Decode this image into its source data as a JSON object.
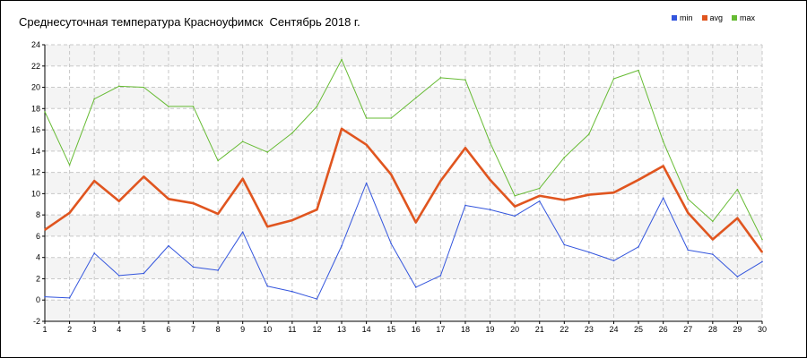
{
  "chart_data": {
    "type": "line",
    "title": "Среднесуточная температура Красноуфимск  Сентябрь 2018 г.",
    "xlabel": "",
    "ylabel": "",
    "x": [
      1,
      2,
      3,
      4,
      5,
      6,
      7,
      8,
      9,
      10,
      11,
      12,
      13,
      14,
      15,
      16,
      17,
      18,
      19,
      20,
      21,
      22,
      23,
      24,
      25,
      26,
      27,
      28,
      29,
      30
    ],
    "ylim": [
      -2,
      24
    ],
    "yticks": [
      -2,
      0,
      2,
      4,
      6,
      8,
      10,
      12,
      14,
      16,
      18,
      20,
      22,
      24
    ],
    "grid": true,
    "legend_position": "top-right",
    "series": [
      {
        "name": "min",
        "color": "#3355dd",
        "values": [
          0.3,
          0.2,
          4.4,
          2.3,
          2.5,
          5.1,
          3.1,
          2.8,
          6.4,
          1.3,
          0.8,
          0.1,
          5.1,
          11.0,
          5.3,
          1.2,
          2.3,
          8.9,
          8.5,
          7.9,
          9.3,
          5.2,
          4.5,
          3.7,
          5.0,
          9.6,
          4.7,
          4.3,
          2.2,
          3.6
        ]
      },
      {
        "name": "avg",
        "color": "#e0551f",
        "values": [
          6.6,
          8.2,
          11.2,
          9.3,
          11.6,
          9.5,
          9.1,
          8.1,
          11.4,
          6.9,
          7.5,
          8.5,
          16.1,
          14.6,
          11.8,
          7.3,
          11.2,
          14.3,
          11.3,
          8.8,
          9.8,
          9.4,
          9.9,
          10.1,
          11.3,
          12.6,
          8.2,
          5.7,
          7.7,
          4.5
        ]
      },
      {
        "name": "max",
        "color": "#66bb33",
        "values": [
          17.7,
          12.7,
          18.9,
          20.1,
          20.0,
          18.2,
          18.2,
          13.1,
          14.9,
          13.9,
          15.7,
          18.2,
          22.6,
          17.1,
          17.1,
          19.0,
          20.9,
          20.7,
          14.8,
          9.8,
          10.5,
          13.4,
          15.6,
          20.8,
          21.6,
          14.9,
          9.5,
          7.4,
          10.4,
          5.7
        ]
      }
    ]
  }
}
